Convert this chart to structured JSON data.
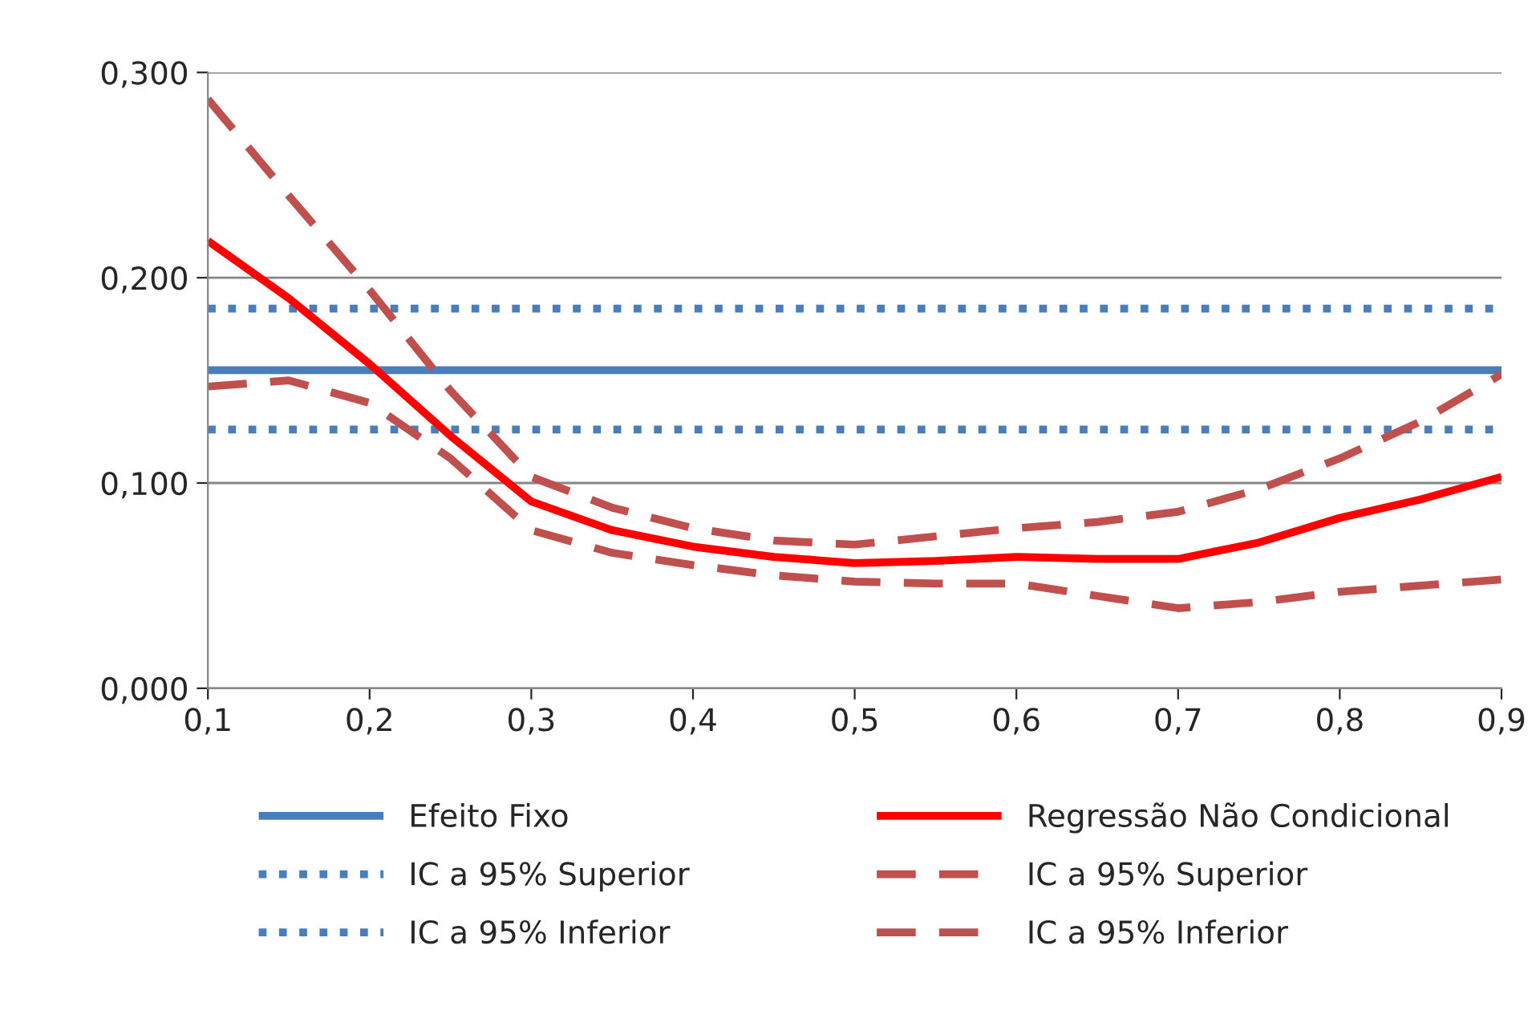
{
  "chart_data": {
    "type": "line",
    "xlim": [
      0.1,
      0.9
    ],
    "xticks": [
      {
        "value": 0.1,
        "label": "0,1"
      },
      {
        "value": 0.2,
        "label": "0,2"
      },
      {
        "value": 0.3,
        "label": "0,3"
      },
      {
        "value": 0.4,
        "label": "0,4"
      },
      {
        "value": 0.5,
        "label": "0,5"
      },
      {
        "value": 0.6,
        "label": "0,6"
      },
      {
        "value": 0.7,
        "label": "0,7"
      },
      {
        "value": 0.8,
        "label": "0,8"
      },
      {
        "value": 0.9,
        "label": "0,9"
      }
    ],
    "ylim": [
      0,
      0.3
    ],
    "yticks": [
      {
        "value": 0,
        "label": "0,000"
      },
      {
        "value": 0.1,
        "label": "0,100"
      },
      {
        "value": 0.2,
        "label": "0,200"
      },
      {
        "value": 0.3,
        "label": "0,300"
      }
    ],
    "grid": "y",
    "legend": "bottom",
    "series": [
      {
        "name": "Efeito Fixo",
        "color": "#4a7ebb",
        "line_style": "solid",
        "x": [
          0.1,
          0.9
        ],
        "values": [
          0.155,
          0.155
        ]
      },
      {
        "name": "IC a 95% Superior",
        "color": "#4a7ebb",
        "line_style": "dotted",
        "x": [
          0.1,
          0.9
        ],
        "values": [
          0.185,
          0.185
        ]
      },
      {
        "name": "IC a 95% Inferior",
        "color": "#4a7ebb",
        "line_style": "dotted",
        "x": [
          0.1,
          0.9
        ],
        "values": [
          0.126,
          0.126
        ]
      },
      {
        "name": "Regressão Não Condicional",
        "color": "#ff0000",
        "line_style": "solid",
        "x": [
          0.1,
          0.15,
          0.2,
          0.25,
          0.3,
          0.35,
          0.4,
          0.45,
          0.5,
          0.55,
          0.6,
          0.65,
          0.7,
          0.75,
          0.8,
          0.85,
          0.9
        ],
        "values": [
          0.218,
          0.19,
          0.158,
          0.123,
          0.091,
          0.077,
          0.069,
          0.064,
          0.061,
          0.062,
          0.064,
          0.063,
          0.063,
          0.071,
          0.083,
          0.092,
          0.103
        ]
      },
      {
        "name": "IC a 95% Superior",
        "color": "#c0504d",
        "line_style": "dashed",
        "x": [
          0.1,
          0.15,
          0.2,
          0.25,
          0.3,
          0.35,
          0.4,
          0.45,
          0.5,
          0.55,
          0.6,
          0.65,
          0.7,
          0.75,
          0.8,
          0.85,
          0.9
        ],
        "values": [
          0.287,
          0.24,
          0.194,
          0.145,
          0.103,
          0.088,
          0.078,
          0.072,
          0.07,
          0.074,
          0.078,
          0.081,
          0.086,
          0.097,
          0.112,
          0.13,
          0.153
        ]
      },
      {
        "name": "IC a 95% Inferior",
        "color": "#c0504d",
        "line_style": "dashed",
        "x": [
          0.1,
          0.15,
          0.2,
          0.25,
          0.3,
          0.35,
          0.4,
          0.45,
          0.5,
          0.55,
          0.6,
          0.65,
          0.7,
          0.75,
          0.8,
          0.85,
          0.9
        ],
        "values": [
          0.147,
          0.15,
          0.139,
          0.112,
          0.077,
          0.066,
          0.06,
          0.055,
          0.052,
          0.051,
          0.051,
          0.045,
          0.039,
          0.042,
          0.047,
          0.05,
          0.053
        ]
      }
    ]
  }
}
